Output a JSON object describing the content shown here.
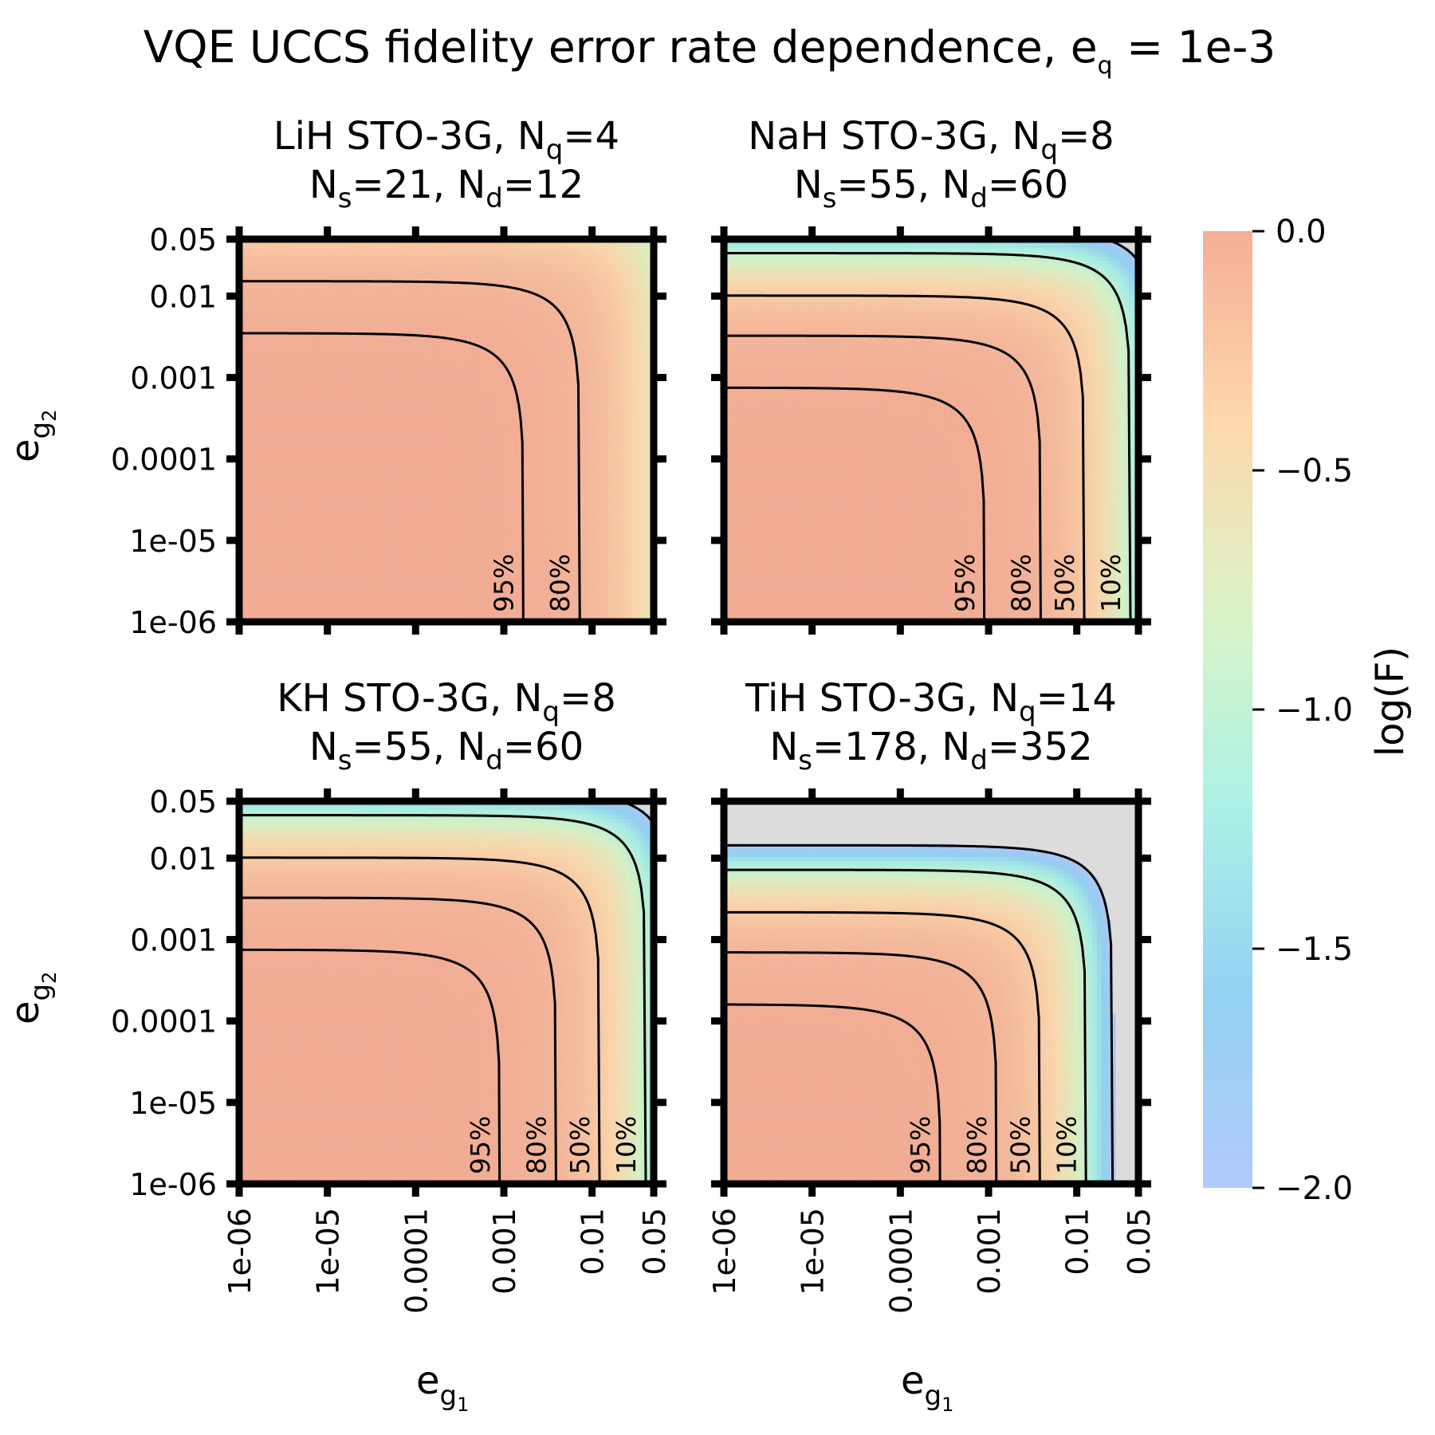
{
  "chart_data": {
    "type": "heatmap",
    "title": {
      "main": "VQE UCCS fidelity error rate dependence, e",
      "sub": "q",
      "tail": " = 1e-3"
    },
    "colorbar": {
      "label": "log(F)",
      "range": [
        -2.0,
        0.0
      ],
      "ticks": [
        "0.0",
        "−0.5",
        "−1.0",
        "−1.5",
        "−2.0"
      ],
      "tick_values": [
        0.0,
        -0.5,
        -1.0,
        -1.5,
        -2.0
      ],
      "colors": [
        "#f4a58a",
        "#fdd3a4",
        "#d6f2c0",
        "#a2f0e2",
        "#88ccf2",
        "#a9c4fb"
      ]
    },
    "x_axis": {
      "label": "e",
      "label_sub": "g",
      "label_subsub": "1",
      "ticks": [
        "1e-06",
        "1e-05",
        "0.0001",
        "0.001",
        "0.01",
        "0.05"
      ],
      "tick_values": [
        1e-06,
        1e-05,
        0.0001,
        0.001,
        0.01,
        0.05
      ],
      "scale": "log"
    },
    "y_axis": {
      "label": "e",
      "label_sub": "g",
      "label_subsub": "2",
      "ticks": [
        "0.05",
        "0.01",
        "0.001",
        "0.0001",
        "1e-05",
        "1e-06"
      ],
      "tick_values": [
        0.05,
        0.01,
        0.001,
        0.0001,
        1e-05,
        1e-06
      ],
      "scale": "log"
    },
    "excluded_region_color": "#dcdcdc",
    "panels": [
      {
        "title_line1": {
          "a": "LiH STO-3G, N",
          "b": "q",
          "c": "=4"
        },
        "title_line2": {
          "a": "N",
          "b": "s",
          "c": "=21, N",
          "d": "d",
          "e": "=12"
        },
        "Ns": 21,
        "Nd": 12,
        "contours": [
          {
            "label": "95%",
            "fidelity": 0.95,
            "x_limit": 0.0017,
            "y_limit": 0.0035
          },
          {
            "label": "80%",
            "fidelity": 0.8,
            "x_limit": 0.0093,
            "y_limit": 0.019
          }
        ]
      },
      {
        "title_line1": {
          "a": "NaH STO-3G, N",
          "b": "q",
          "c": "=8"
        },
        "title_line2": {
          "a": "N",
          "b": "s",
          "c": "=55, N",
          "d": "d",
          "e": "=60"
        },
        "Ns": 55,
        "Nd": 60,
        "contours": [
          {
            "label": "95%",
            "fidelity": 0.95,
            "x_limit": 0.00092,
            "y_limit": 0.00075
          },
          {
            "label": "80%",
            "fidelity": 0.8,
            "x_limit": 0.0041,
            "y_limit": 0.0034
          },
          {
            "label": "50%",
            "fidelity": 0.5,
            "x_limit": 0.0125,
            "y_limit": 0.0108
          },
          {
            "label": "10%",
            "fidelity": 0.1,
            "x_limit": 0.037,
            "y_limit": 0.031
          }
        ]
      },
      {
        "title_line1": {
          "a": "KH STO-3G, N",
          "b": "q",
          "c": "=8"
        },
        "title_line2": {
          "a": "N",
          "b": "s",
          "c": "=55, N",
          "d": "d",
          "e": "=60"
        },
        "Ns": 55,
        "Nd": 60,
        "contours": [
          {
            "label": "95%",
            "fidelity": 0.95,
            "x_limit": 0.00092,
            "y_limit": 0.00075
          },
          {
            "label": "80%",
            "fidelity": 0.8,
            "x_limit": 0.0041,
            "y_limit": 0.0034
          },
          {
            "label": "50%",
            "fidelity": 0.5,
            "x_limit": 0.0125,
            "y_limit": 0.0108
          },
          {
            "label": "10%",
            "fidelity": 0.1,
            "x_limit": 0.037,
            "y_limit": 0.031
          }
        ]
      },
      {
        "title_line1": {
          "a": "TiH STO-3G, N",
          "b": "q",
          "c": "=14"
        },
        "title_line2": {
          "a": "N",
          "b": "s",
          "c": "=178, N",
          "d": "d",
          "e": "=352"
        },
        "Ns": 178,
        "Nd": 352,
        "contours": [
          {
            "label": "95%",
            "fidelity": 0.95,
            "x_limit": 0.00029,
            "y_limit": 0.00016
          },
          {
            "label": "80%",
            "fidelity": 0.8,
            "x_limit": 0.00127,
            "y_limit": 0.0007
          },
          {
            "label": "50%",
            "fidelity": 0.5,
            "x_limit": 0.0039,
            "y_limit": 0.0021
          },
          {
            "label": "10%",
            "fidelity": 0.1,
            "x_limit": 0.0116,
            "y_limit": 0.0064
          }
        ]
      }
    ]
  }
}
